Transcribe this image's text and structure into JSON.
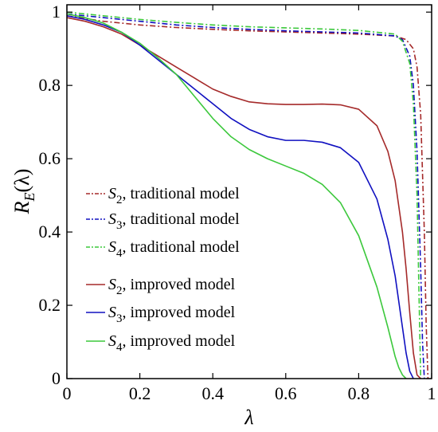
{
  "chart_data": {
    "type": "line",
    "title": "",
    "xlabel": "λ",
    "ylabel_main": "R",
    "ylabel_sub": "E",
    "ylabel_arg": "(λ)",
    "xlim": [
      0,
      1
    ],
    "ylim": [
      0,
      1.02
    ],
    "xticks": [
      0,
      0.2,
      0.4,
      0.6,
      0.8,
      1
    ],
    "xtick_labels": [
      "0",
      "0.2",
      "0.4",
      "0.6",
      "0.8",
      "1"
    ],
    "yticks": [
      0,
      0.2,
      0.4,
      0.6,
      0.8,
      1
    ],
    "ytick_labels": [
      "0",
      "0.2",
      "0.4",
      "0.6",
      "0.8",
      "1"
    ],
    "grid": false,
    "legend_position": "center-left",
    "series": [
      {
        "name_symbol": "S",
        "name_sub": "2",
        "name_rest": ", traditional model",
        "color": "#a52a2a",
        "dash": "dashdot",
        "x": [
          0,
          0.1,
          0.2,
          0.3,
          0.4,
          0.5,
          0.6,
          0.7,
          0.8,
          0.9,
          0.93,
          0.95,
          0.96,
          0.97,
          0.98,
          0.985,
          0.99
        ],
        "y": [
          0.99,
          0.975,
          0.965,
          0.958,
          0.953,
          0.949,
          0.946,
          0.943,
          0.94,
          0.935,
          0.925,
          0.9,
          0.85,
          0.72,
          0.4,
          0.15,
          0
        ]
      },
      {
        "name_symbol": "S",
        "name_sub": "3",
        "name_rest": ", traditional model",
        "color": "#1010c0",
        "dash": "dashdot",
        "x": [
          0,
          0.1,
          0.2,
          0.3,
          0.4,
          0.5,
          0.6,
          0.7,
          0.8,
          0.9,
          0.92,
          0.94,
          0.95,
          0.96,
          0.97,
          0.975,
          0.98
        ],
        "y": [
          0.995,
          0.985,
          0.975,
          0.965,
          0.958,
          0.953,
          0.949,
          0.946,
          0.943,
          0.935,
          0.925,
          0.88,
          0.8,
          0.62,
          0.3,
          0.1,
          0
        ]
      },
      {
        "name_symbol": "S",
        "name_sub": "4",
        "name_rest": ", traditional model",
        "color": "#3cc83c",
        "dash": "dashdot",
        "x": [
          0,
          0.1,
          0.2,
          0.3,
          0.4,
          0.5,
          0.6,
          0.7,
          0.8,
          0.9,
          0.92,
          0.94,
          0.95,
          0.96,
          0.965,
          0.97
        ],
        "y": [
          1.0,
          0.99,
          0.98,
          0.972,
          0.965,
          0.96,
          0.957,
          0.954,
          0.95,
          0.94,
          0.92,
          0.86,
          0.75,
          0.5,
          0.25,
          0
        ]
      },
      {
        "name_symbol": "S",
        "name_sub": "2",
        "name_rest": ", improved model",
        "color": "#a52a2a",
        "dash": "solid",
        "x": [
          0,
          0.05,
          0.1,
          0.15,
          0.2,
          0.25,
          0.3,
          0.35,
          0.4,
          0.45,
          0.5,
          0.55,
          0.6,
          0.65,
          0.7,
          0.75,
          0.8,
          0.85,
          0.88,
          0.9,
          0.92,
          0.93,
          0.94,
          0.95,
          0.96,
          0.97
        ],
        "y": [
          0.985,
          0.975,
          0.96,
          0.94,
          0.91,
          0.88,
          0.85,
          0.82,
          0.79,
          0.77,
          0.755,
          0.75,
          0.748,
          0.748,
          0.749,
          0.747,
          0.735,
          0.69,
          0.62,
          0.54,
          0.4,
          0.3,
          0.18,
          0.07,
          0.01,
          0
        ]
      },
      {
        "name_symbol": "S",
        "name_sub": "3",
        "name_rest": ", improved model",
        "color": "#1010c0",
        "dash": "solid",
        "x": [
          0,
          0.05,
          0.1,
          0.15,
          0.2,
          0.25,
          0.3,
          0.35,
          0.4,
          0.45,
          0.5,
          0.55,
          0.6,
          0.65,
          0.7,
          0.75,
          0.8,
          0.85,
          0.88,
          0.9,
          0.92,
          0.93,
          0.94,
          0.95
        ],
        "y": [
          0.99,
          0.98,
          0.965,
          0.945,
          0.91,
          0.87,
          0.83,
          0.79,
          0.75,
          0.71,
          0.68,
          0.66,
          0.65,
          0.65,
          0.645,
          0.63,
          0.59,
          0.49,
          0.38,
          0.28,
          0.14,
          0.07,
          0.02,
          0
        ]
      },
      {
        "name_symbol": "S",
        "name_sub": "4",
        "name_rest": ", improved model",
        "color": "#3cc83c",
        "dash": "solid",
        "x": [
          0,
          0.05,
          0.1,
          0.15,
          0.2,
          0.25,
          0.3,
          0.35,
          0.4,
          0.45,
          0.5,
          0.55,
          0.6,
          0.65,
          0.7,
          0.75,
          0.8,
          0.85,
          0.88,
          0.9,
          0.91,
          0.92,
          0.93
        ],
        "y": [
          0.995,
          0.985,
          0.97,
          0.945,
          0.915,
          0.875,
          0.83,
          0.77,
          0.71,
          0.66,
          0.625,
          0.6,
          0.58,
          0.56,
          0.53,
          0.48,
          0.39,
          0.25,
          0.14,
          0.06,
          0.03,
          0.01,
          0
        ]
      }
    ]
  }
}
